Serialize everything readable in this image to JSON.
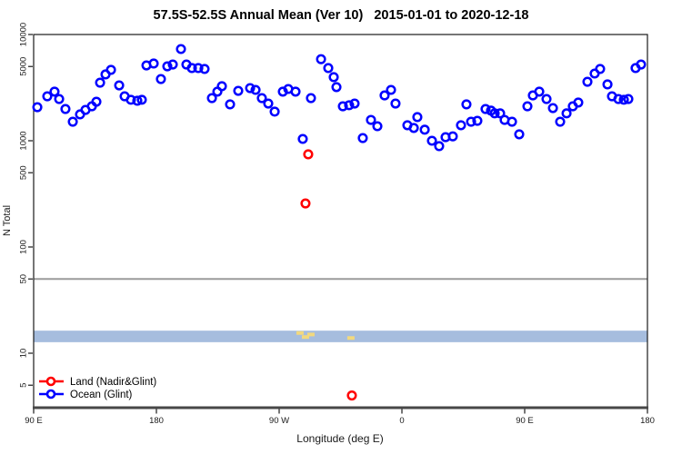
{
  "title": "57.5S-52.5S Annual Mean (Ver 10)   2015-01-01 to 2020-12-18",
  "chart_data": {
    "type": "scatter",
    "title": "57.5S-52.5S Annual Mean (Ver 10)   2015-01-01 to 2020-12-18",
    "xlabel": "Longitude (deg E)",
    "ylabel": "N Total",
    "x_axis": {
      "note": "longitude axis wraps eastward from 90E",
      "range_deg": [
        90,
        540
      ],
      "ticks": [
        {
          "lon": 90,
          "label": "90 E"
        },
        {
          "lon": 180,
          "label": "180"
        },
        {
          "lon": 270,
          "label": "90 W"
        },
        {
          "lon": 360,
          "label": "0"
        },
        {
          "lon": 450,
          "label": "90 E"
        },
        {
          "lon": 540,
          "label": "180"
        }
      ]
    },
    "y_axis": {
      "scale": "log10",
      "range": [
        3,
        10700
      ],
      "ticks": [
        {
          "value": 10000,
          "label": "10000"
        },
        {
          "value": 5000,
          "label": "5000"
        },
        {
          "value": 1000,
          "label": "1000"
        },
        {
          "value": 500,
          "label": "500"
        },
        {
          "value": 100,
          "label": "100"
        },
        {
          "value": 50,
          "label": "50"
        },
        {
          "value": 10,
          "label": "10"
        },
        {
          "value": 5,
          "label": "5"
        }
      ]
    },
    "reference_line": {
      "value": 50,
      "color": "#9b9b9b"
    },
    "band": {
      "value_from": 12.7,
      "value_to": 16.3,
      "color": "#a6bdde"
    },
    "highlight_marks": {
      "color": "#f2d97e",
      "points": [
        [
          285.3,
          15.5
        ],
        [
          289.3,
          14.2
        ],
        [
          293.3,
          15.0
        ],
        [
          322.6,
          13.9
        ]
      ]
    },
    "series": [
      {
        "name": "Land (Nadir&Glint)",
        "color": "#ff0000",
        "marker": "open-circle",
        "points": [
          [
            291.3,
            745
          ],
          [
            289.3,
            257
          ],
          [
            323.3,
            4
          ]
        ]
      },
      {
        "name": "Ocean (Glint)",
        "color": "#0000ff",
        "marker": "open-circle",
        "points": [
          [
            92.7,
            2070
          ],
          [
            100,
            2620
          ],
          [
            105.3,
            2900
          ],
          [
            108.7,
            2470
          ],
          [
            113.3,
            1990
          ],
          [
            118.7,
            1510
          ],
          [
            124,
            1770
          ],
          [
            128,
            1950
          ],
          [
            132.7,
            2110
          ],
          [
            136,
            2330
          ],
          [
            138.7,
            3520
          ],
          [
            142.7,
            4210
          ],
          [
            146.7,
            4650
          ],
          [
            152.7,
            3320
          ],
          [
            156.7,
            2620
          ],
          [
            161.3,
            2430
          ],
          [
            166,
            2380
          ],
          [
            169.3,
            2430
          ],
          [
            172.7,
            5120
          ],
          [
            178,
            5330
          ],
          [
            183.3,
            3810
          ],
          [
            188,
            5020
          ],
          [
            192,
            5220
          ],
          [
            198,
            7300
          ],
          [
            202,
            5220
          ],
          [
            206,
            4830
          ],
          [
            210.7,
            4830
          ],
          [
            215.3,
            4740
          ],
          [
            220.7,
            2520
          ],
          [
            224.7,
            2900
          ],
          [
            228,
            3260
          ],
          [
            234,
            2200
          ],
          [
            240,
            2950
          ],
          [
            248.7,
            3130
          ],
          [
            252.7,
            3010
          ],
          [
            257.3,
            2520
          ],
          [
            262,
            2240
          ],
          [
            266.7,
            1880
          ],
          [
            272.7,
            2900
          ],
          [
            276.7,
            3070
          ],
          [
            282,
            2900
          ],
          [
            287.3,
            1040
          ],
          [
            293.3,
            2520
          ],
          [
            300.7,
            5860
          ],
          [
            306,
            4830
          ],
          [
            310,
            3970
          ],
          [
            312,
            3200
          ],
          [
            316.7,
            2110
          ],
          [
            321.3,
            2160
          ],
          [
            325.3,
            2240
          ],
          [
            331.3,
            1060
          ],
          [
            337.3,
            1570
          ],
          [
            342,
            1370
          ],
          [
            347.3,
            2670
          ],
          [
            352,
            3010
          ],
          [
            355.3,
            2240
          ],
          [
            364,
            1400
          ],
          [
            368.7,
            1320
          ],
          [
            371.3,
            1670
          ],
          [
            376.7,
            1270
          ],
          [
            382,
            1000
          ],
          [
            387.3,
            890
          ],
          [
            392,
            1080
          ],
          [
            397.3,
            1100
          ],
          [
            403.3,
            1400
          ],
          [
            407.3,
            2200
          ],
          [
            410.7,
            1510
          ],
          [
            415.3,
            1540
          ],
          [
            421.3,
            1990
          ],
          [
            425.3,
            1920
          ],
          [
            428,
            1810
          ],
          [
            432,
            1810
          ],
          [
            435.3,
            1570
          ],
          [
            440.7,
            1510
          ],
          [
            446,
            1150
          ],
          [
            452,
            2110
          ],
          [
            456,
            2670
          ],
          [
            460.7,
            2900
          ],
          [
            466,
            2470
          ],
          [
            470.7,
            2030
          ],
          [
            476,
            1510
          ],
          [
            480.7,
            1810
          ],
          [
            485.3,
            2110
          ],
          [
            489.3,
            2290
          ],
          [
            496,
            3590
          ],
          [
            501.3,
            4290
          ],
          [
            505.3,
            4740
          ],
          [
            510.7,
            3390
          ],
          [
            514,
            2620
          ],
          [
            518.7,
            2470
          ],
          [
            522.7,
            2430
          ],
          [
            526,
            2470
          ],
          [
            531.3,
            4830
          ],
          [
            535.3,
            5220
          ]
        ]
      }
    ],
    "legend": {
      "position": "bottom-left",
      "entries": [
        {
          "label": "Land (Nadir&Glint)",
          "color": "#ff0000"
        },
        {
          "label": "Ocean (Glint)",
          "color": "#0000ff"
        }
      ]
    }
  }
}
